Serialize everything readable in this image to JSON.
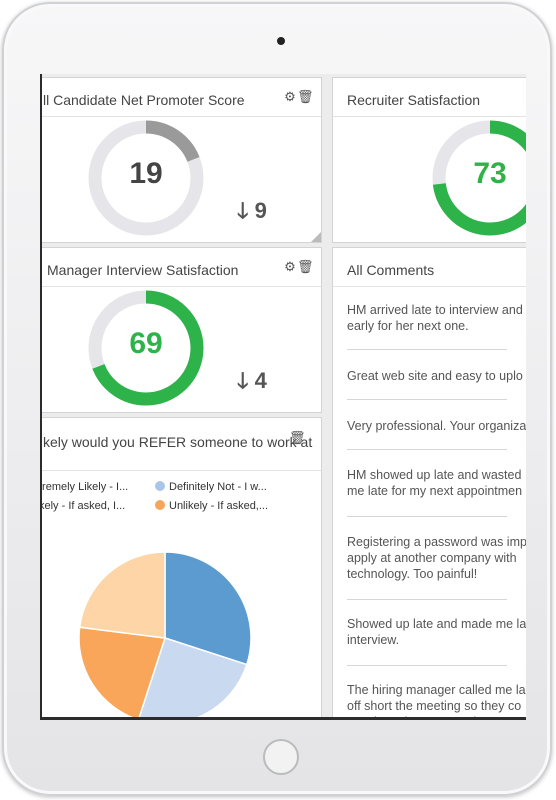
{
  "cards": {
    "nps": {
      "title": "ll Candidate Net Promoter Score",
      "value": "19",
      "gauge_fraction": 0.19,
      "delta": "9",
      "delta_direction": "down"
    },
    "recruiter": {
      "title": "Recruiter Satisfaction",
      "value": "73",
      "gauge_fraction": 0.73
    },
    "hm": {
      "title": "Manager Interview Satisfaction",
      "value": "69",
      "gauge_fraction": 0.69,
      "delta": "4",
      "delta_direction": "down"
    },
    "refer": {
      "title": "kely would you REFER someone to work at",
      "legend": [
        {
          "label": "tremely Likely - I...",
          "color": "#ffd7a8"
        },
        {
          "label": "Definitely Not - I w...",
          "color": "#a9c6ea"
        },
        {
          "label": "kely - If asked, I...",
          "color": "#ffd7a8"
        },
        {
          "label": "Unlikely - If asked,...",
          "color": "#f6a55a"
        }
      ]
    },
    "comments": {
      "title": "All Comments",
      "items": [
        "HM arrived late to interview and\nearly for her next one.",
        "Great web site and easy to uplo",
        "Very professional. Your organiza",
        "HM showed up late and wasted\nme late for my next appointmen",
        "Registering a password was imp\napply at another company with\ntechnology. Too painful!",
        "Showed up late and made me la\ninterview.",
        "The hiring manager called me la\noff short the meeting so they co\nnext interview. How rude!"
      ]
    }
  },
  "colors": {
    "gauge_green": "#2db34a",
    "gauge_gray": "#9a9a9a",
    "gauge_track": "#e6e6ea"
  },
  "chart_data": {
    "type": "pie",
    "title": "",
    "slices": [
      {
        "value": 30,
        "color": "#5b9bd0"
      },
      {
        "value": 25,
        "color": "#c9d9ef"
      },
      {
        "value": 22,
        "color": "#f9a65a"
      },
      {
        "value": 23,
        "color": "#fdd5a6"
      }
    ]
  },
  "icons": {
    "gear": "⚙",
    "trash": "🗑",
    "arrow_down": "🡓"
  }
}
